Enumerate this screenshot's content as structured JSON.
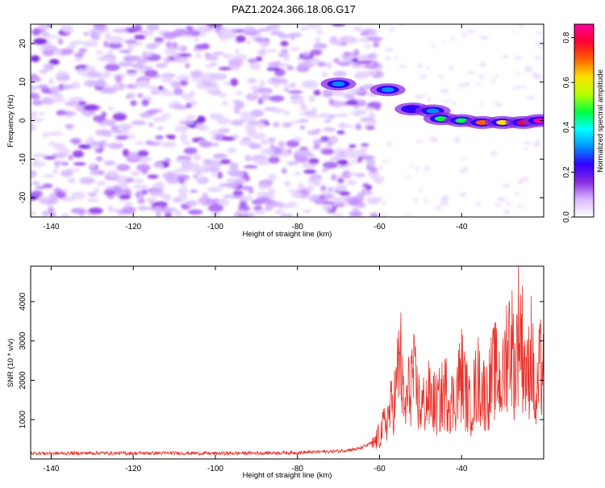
{
  "title": "PAZ1.2024.366.18.06.G17",
  "chart_data": [
    {
      "type": "heatmap",
      "xlabel": "Height of straight line (km)",
      "ylabel": "Frequency (Hz)",
      "xlim": [
        -145,
        -20
      ],
      "ylim": [
        -25,
        25
      ],
      "xticks": [
        -140,
        -120,
        -100,
        -80,
        -60,
        -40
      ],
      "yticks": [
        -20,
        -10,
        0,
        10,
        20
      ],
      "colorbar": {
        "label": "Normalized spectral amplitude",
        "range": [
          0,
          0.86
        ],
        "ticks": [
          0.0,
          0.2,
          0.4,
          0.6,
          0.8
        ],
        "colors": [
          "#ffffff",
          "#d9b8ff",
          "#8a2be2",
          "#3000ff",
          "#0090ff",
          "#00ffff",
          "#00ff40",
          "#b8ff00",
          "#ffe000",
          "#ff6000",
          "#ff0030",
          "#ff00a0"
        ]
      },
      "ridge": [
        {
          "x": -70,
          "y": 9.5,
          "v": 0.3
        },
        {
          "x": -58,
          "y": 8,
          "v": 0.35
        },
        {
          "x": -52,
          "y": 3,
          "v": 0.25
        },
        {
          "x": -47,
          "y": 2.5,
          "v": 0.35
        },
        {
          "x": -45,
          "y": 0.5,
          "v": 0.45
        },
        {
          "x": -40,
          "y": 0,
          "v": 0.5
        },
        {
          "x": -35,
          "y": -0.5,
          "v": 0.7
        },
        {
          "x": -30,
          "y": -0.5,
          "v": 0.65
        },
        {
          "x": -25,
          "y": -0.5,
          "v": 0.75
        },
        {
          "x": -21,
          "y": 0,
          "v": 0.86
        }
      ],
      "grid": false
    },
    {
      "type": "line",
      "xlabel": "Height of straight line (km)",
      "ylabel": "SNR (10 * v/v)",
      "xlim": [
        -145,
        -20
      ],
      "ylim": [
        0,
        4900
      ],
      "xticks": [
        -140,
        -120,
        -100,
        -80,
        -60,
        -40
      ],
      "yticks": [
        1000,
        2000,
        3000,
        4000
      ],
      "series": [
        {
          "color": "#e8312a",
          "x": [
            -145,
            -140,
            -130,
            -120,
            -110,
            -100,
            -90,
            -80,
            -70,
            -65,
            -62,
            -60,
            -58,
            -56,
            -55,
            -54,
            -52,
            -50,
            -48,
            -46,
            -44,
            -42,
            -40,
            -38,
            -36,
            -34,
            -32,
            -30,
            -29,
            -28,
            -27,
            -26,
            -25,
            -24,
            -23,
            -22,
            -21,
            -20
          ],
          "y": [
            150,
            140,
            150,
            145,
            150,
            140,
            150,
            160,
            200,
            260,
            400,
            800,
            1400,
            2200,
            3700,
            1500,
            2900,
            1700,
            2100,
            1800,
            2300,
            1900,
            2900,
            1700,
            2700,
            2100,
            3000,
            2500,
            3800,
            4200,
            2900,
            4800,
            3600,
            2600,
            3900,
            1500,
            3000,
            3200
          ]
        }
      ],
      "grid": false
    }
  ]
}
